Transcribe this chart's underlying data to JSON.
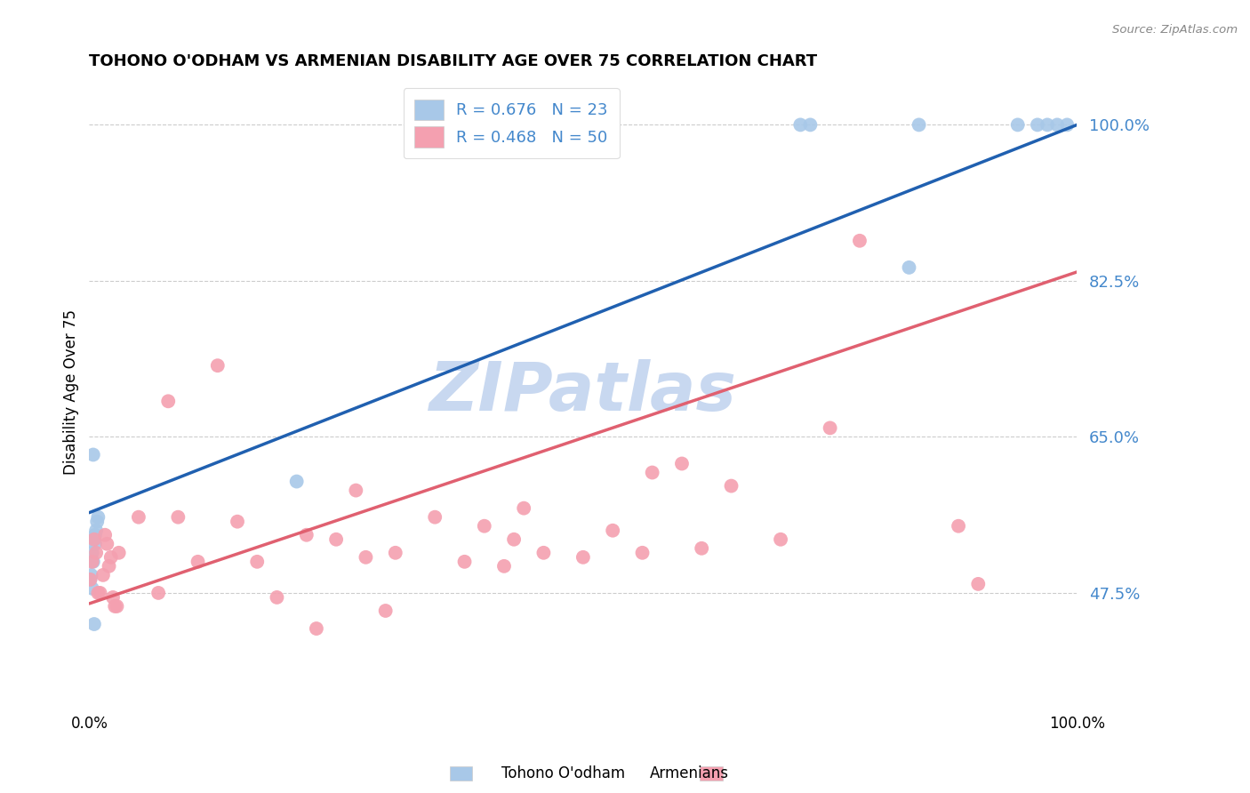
{
  "title": "TOHONO O'ODHAM VS ARMENIAN DISABILITY AGE OVER 75 CORRELATION CHART",
  "source": "Source: ZipAtlas.com",
  "ylabel": "Disability Age Over 75",
  "yticks": [
    0.475,
    0.65,
    0.825,
    1.0
  ],
  "ytick_labels": [
    "47.5%",
    "65.0%",
    "82.5%",
    "100.0%"
  ],
  "legend_label1": "Tohono O'odham",
  "legend_label2": "Armenians",
  "R1": 0.676,
  "N1": 23,
  "R2": 0.468,
  "N2": 50,
  "color_blue": "#a8c8e8",
  "color_pink": "#f4a0b0",
  "line_blue": "#2060b0",
  "line_pink": "#e06070",
  "tick_color": "#4488cc",
  "watermark": "ZIPatlas",
  "watermark_color": "#c8d8f0",
  "blue_x": [
    0.001,
    0.005,
    0.008,
    0.003,
    0.004,
    0.006,
    0.007,
    0.002,
    0.009,
    0.006,
    0.004,
    0.003,
    0.005,
    0.94,
    0.96,
    0.97,
    0.98,
    0.99,
    0.72,
    0.73,
    0.83,
    0.84,
    0.21
  ],
  "blue_y": [
    0.49,
    0.535,
    0.555,
    0.52,
    0.51,
    0.54,
    0.545,
    0.495,
    0.56,
    0.53,
    0.63,
    0.48,
    0.44,
    1.0,
    1.0,
    1.0,
    1.0,
    1.0,
    1.0,
    1.0,
    0.84,
    1.0,
    0.6
  ],
  "pink_x": [
    0.001,
    0.003,
    0.005,
    0.007,
    0.009,
    0.011,
    0.014,
    0.016,
    0.018,
    0.02,
    0.022,
    0.024,
    0.026,
    0.028,
    0.03,
    0.05,
    0.07,
    0.09,
    0.11,
    0.15,
    0.17,
    0.19,
    0.22,
    0.25,
    0.28,
    0.31,
    0.35,
    0.4,
    0.43,
    0.46,
    0.5,
    0.53,
    0.57,
    0.6,
    0.62,
    0.65,
    0.75,
    0.78,
    0.88,
    0.9,
    0.13,
    0.08,
    0.27,
    0.38,
    0.44,
    0.56,
    0.7,
    0.42,
    0.3,
    0.23
  ],
  "pink_y": [
    0.49,
    0.51,
    0.535,
    0.52,
    0.475,
    0.475,
    0.495,
    0.54,
    0.53,
    0.505,
    0.515,
    0.47,
    0.46,
    0.46,
    0.52,
    0.56,
    0.475,
    0.56,
    0.51,
    0.555,
    0.51,
    0.47,
    0.54,
    0.535,
    0.515,
    0.52,
    0.56,
    0.55,
    0.535,
    0.52,
    0.515,
    0.545,
    0.61,
    0.62,
    0.525,
    0.595,
    0.66,
    0.87,
    0.55,
    0.485,
    0.73,
    0.69,
    0.59,
    0.51,
    0.57,
    0.52,
    0.535,
    0.505,
    0.455,
    0.435
  ],
  "xlim": [
    0.0,
    1.0
  ],
  "ylim": [
    0.35,
    1.05
  ],
  "blue_line_x0": 0.0,
  "blue_line_y0": 0.565,
  "blue_line_x1": 1.0,
  "blue_line_y1": 1.0,
  "pink_line_x0": 0.0,
  "pink_line_y0": 0.463,
  "pink_line_x1": 1.0,
  "pink_line_y1": 0.835
}
